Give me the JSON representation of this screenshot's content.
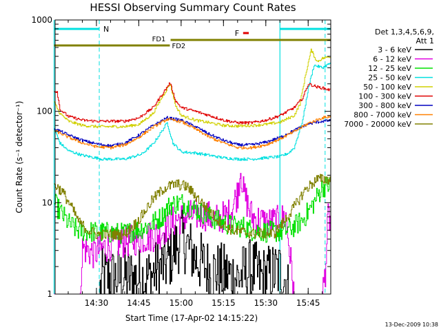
{
  "chart_data": {
    "type": "line",
    "title": "HESSI Observing Summary Count Rates",
    "xlabel": "Start Time (17-Apr-02 14:15:22)",
    "ylabel": "Count Rate (s⁻¹ detector⁻¹)",
    "y_scale": "log",
    "ylim": [
      1,
      1000
    ],
    "xlim": [
      "14:15:22",
      "15:53:00"
    ],
    "x_ticks": [
      "14:30",
      "14:45",
      "15:00",
      "15:15",
      "15:30",
      "15:45"
    ],
    "y_ticks": [
      "1",
      "10",
      "100",
      "1000"
    ],
    "grid": false,
    "legend_position": "right",
    "legend_header": [
      "Det 1,3,4,5,6,9,",
      "Att 1"
    ],
    "timestamp": "13-Dec-2009 10:38",
    "series": [
      {
        "name": "3 - 6 keV",
        "color": "#000000",
        "points": [
          [
            "14:15",
            1
          ],
          [
            "14:31",
            1
          ],
          [
            "14:32",
            1.5
          ],
          [
            "14:48",
            1.5
          ],
          [
            "14:55",
            2.2
          ],
          [
            "15:00",
            4.2
          ],
          [
            "15:05",
            2.5
          ],
          [
            "15:10",
            1.8
          ],
          [
            "15:20",
            1.5
          ],
          [
            "15:25",
            1.9
          ],
          [
            "15:28",
            1.5
          ],
          [
            "15:35",
            1.8
          ],
          [
            "15:37",
            1.4
          ],
          [
            "15:38",
            1
          ],
          [
            "15:53",
            1
          ]
        ]
      },
      {
        "name": "6 - 12 keV",
        "color": "#e000e0",
        "points": [
          [
            "14:15",
            1
          ],
          [
            "14:24",
            1
          ],
          [
            "14:25",
            3.2
          ],
          [
            "14:29",
            2.8
          ],
          [
            "14:35",
            3.5
          ],
          [
            "14:45",
            4
          ],
          [
            "14:52",
            4.5
          ],
          [
            "14:58",
            6.5
          ],
          [
            "15:03",
            7.2
          ],
          [
            "15:08",
            7.5
          ],
          [
            "15:12",
            6.5
          ],
          [
            "15:17",
            7.5
          ],
          [
            "15:20",
            13
          ],
          [
            "15:21",
            24
          ],
          [
            "15:22",
            13
          ],
          [
            "15:25",
            7
          ],
          [
            "15:30",
            6
          ],
          [
            "15:34",
            6.2
          ],
          [
            "15:37",
            7
          ],
          [
            "15:40",
            1
          ],
          [
            "15:50",
            1
          ],
          [
            "15:51",
            1.8
          ],
          [
            "15:52",
            7
          ],
          [
            "15:53",
            6
          ]
        ]
      },
      {
        "name": "12 - 25 keV",
        "color": "#00e000",
        "points": [
          [
            "14:15",
            10
          ],
          [
            "14:17",
            8
          ],
          [
            "14:20",
            6
          ],
          [
            "14:23",
            5
          ],
          [
            "14:28",
            4.8
          ],
          [
            "14:40",
            4.6
          ],
          [
            "14:48",
            5.5
          ],
          [
            "14:53",
            7
          ],
          [
            "14:56",
            9.5
          ],
          [
            "15:00",
            10
          ],
          [
            "15:05",
            8.5
          ],
          [
            "15:10",
            7
          ],
          [
            "15:15",
            6
          ],
          [
            "15:19",
            5.5
          ],
          [
            "15:22",
            5.5
          ],
          [
            "15:25",
            5
          ],
          [
            "15:30",
            4.8
          ],
          [
            "15:36",
            4.8
          ],
          [
            "15:40",
            5.5
          ],
          [
            "15:43",
            6.5
          ],
          [
            "15:47",
            10
          ],
          [
            "15:50",
            15
          ],
          [
            "15:53",
            15.5
          ]
        ]
      },
      {
        "name": "25 - 50 keV",
        "color": "#00e0e0",
        "points": [
          [
            "14:15",
            65
          ],
          [
            "14:17",
            45
          ],
          [
            "14:20",
            37
          ],
          [
            "14:25",
            33
          ],
          [
            "14:32",
            30
          ],
          [
            "14:40",
            30
          ],
          [
            "14:46",
            34
          ],
          [
            "14:50",
            44
          ],
          [
            "14:53",
            60
          ],
          [
            "14:55",
            75
          ],
          [
            "14:57",
            45
          ],
          [
            "15:00",
            36
          ],
          [
            "15:05",
            35
          ],
          [
            "15:10",
            33
          ],
          [
            "15:15",
            31
          ],
          [
            "15:20",
            30
          ],
          [
            "15:25",
            30
          ],
          [
            "15:30",
            31
          ],
          [
            "15:35",
            32
          ],
          [
            "15:38",
            35
          ],
          [
            "15:40",
            40
          ],
          [
            "15:43",
            80
          ],
          [
            "15:45",
            180
          ],
          [
            "15:47",
            320
          ],
          [
            "15:50",
            300
          ],
          [
            "15:53",
            340
          ]
        ]
      },
      {
        "name": "50 - 100 keV",
        "color": "#d0d000",
        "points": [
          [
            "14:15",
            125
          ],
          [
            "14:17",
            95
          ],
          [
            "14:20",
            78
          ],
          [
            "14:25",
            70
          ],
          [
            "14:30",
            68
          ],
          [
            "14:40",
            68
          ],
          [
            "14:45",
            72
          ],
          [
            "14:50",
            95
          ],
          [
            "14:53",
            140
          ],
          [
            "14:56",
            200
          ],
          [
            "14:58",
            115
          ],
          [
            "15:00",
            90
          ],
          [
            "15:05",
            80
          ],
          [
            "15:10",
            75
          ],
          [
            "15:15",
            70
          ],
          [
            "15:20",
            69
          ],
          [
            "15:25",
            70
          ],
          [
            "15:30",
            72
          ],
          [
            "15:35",
            76
          ],
          [
            "15:40",
            90
          ],
          [
            "15:42",
            120
          ],
          [
            "15:44",
            250
          ],
          [
            "15:46",
            470
          ],
          [
            "15:48",
            350
          ],
          [
            "15:50",
            380
          ],
          [
            "15:53",
            400
          ]
        ]
      },
      {
        "name": "100 - 300 keV",
        "color": "#e00000",
        "points": [
          [
            "14:15",
            165
          ],
          [
            "14:16",
            165
          ],
          [
            "14:17",
            105
          ],
          [
            "14:20",
            88
          ],
          [
            "14:25",
            80
          ],
          [
            "14:30",
            78
          ],
          [
            "14:40",
            78
          ],
          [
            "14:45",
            85
          ],
          [
            "14:50",
            110
          ],
          [
            "14:53",
            150
          ],
          [
            "14:56",
            205
          ],
          [
            "14:58",
            130
          ],
          [
            "15:00",
            110
          ],
          [
            "15:05",
            100
          ],
          [
            "15:10",
            90
          ],
          [
            "15:15",
            80
          ],
          [
            "15:20",
            75
          ],
          [
            "15:25",
            75
          ],
          [
            "15:30",
            80
          ],
          [
            "15:35",
            90
          ],
          [
            "15:40",
            110
          ],
          [
            "15:43",
            140
          ],
          [
            "15:45",
            200
          ],
          [
            "15:48",
            185
          ],
          [
            "15:50",
            180
          ],
          [
            "15:53",
            170
          ]
        ]
      },
      {
        "name": "300 - 800 keV",
        "color": "#0000c0",
        "points": [
          [
            "14:15",
            65
          ],
          [
            "14:20",
            55
          ],
          [
            "14:25",
            48
          ],
          [
            "14:30",
            44
          ],
          [
            "14:35",
            42
          ],
          [
            "14:40",
            45
          ],
          [
            "14:45",
            55
          ],
          [
            "14:50",
            70
          ],
          [
            "14:55",
            85
          ],
          [
            "15:00",
            80
          ],
          [
            "15:05",
            68
          ],
          [
            "15:10",
            56
          ],
          [
            "15:15",
            48
          ],
          [
            "15:20",
            43
          ],
          [
            "15:25",
            43
          ],
          [
            "15:30",
            46
          ],
          [
            "15:35",
            52
          ],
          [
            "15:40",
            62
          ],
          [
            "15:45",
            73
          ],
          [
            "15:50",
            78
          ],
          [
            "15:53",
            79
          ]
        ]
      },
      {
        "name": "800 - 7000 keV",
        "color": "#ff8000",
        "points": [
          [
            "14:15",
            62
          ],
          [
            "14:20",
            52
          ],
          [
            "14:25",
            45
          ],
          [
            "14:30",
            41
          ],
          [
            "14:35",
            40
          ],
          [
            "14:40",
            43
          ],
          [
            "14:45",
            52
          ],
          [
            "14:50",
            67
          ],
          [
            "14:55",
            82
          ],
          [
            "15:00",
            77
          ],
          [
            "15:05",
            64
          ],
          [
            "15:10",
            52
          ],
          [
            "15:15",
            45
          ],
          [
            "15:20",
            40
          ],
          [
            "15:25",
            40
          ],
          [
            "15:30",
            43
          ],
          [
            "15:35",
            50
          ],
          [
            "15:40",
            60
          ],
          [
            "15:45",
            74
          ],
          [
            "15:50",
            85
          ],
          [
            "15:53",
            88
          ]
        ]
      },
      {
        "name": "7000 - 20000 keV",
        "color": "#808000",
        "points": [
          [
            "14:15",
            16
          ],
          [
            "14:18",
            13
          ],
          [
            "14:21",
            9
          ],
          [
            "14:24",
            6
          ],
          [
            "14:27",
            5
          ],
          [
            "14:30",
            4.5
          ],
          [
            "14:40",
            4.5
          ],
          [
            "14:45",
            6.5
          ],
          [
            "14:50",
            11
          ],
          [
            "14:54",
            14.5
          ],
          [
            "14:58",
            16
          ],
          [
            "15:02",
            15
          ],
          [
            "15:06",
            11
          ],
          [
            "15:10",
            8
          ],
          [
            "15:14",
            6
          ],
          [
            "15:18",
            5
          ],
          [
            "15:25",
            4.6
          ],
          [
            "15:33",
            4.6
          ],
          [
            "15:36",
            6
          ],
          [
            "15:40",
            9
          ],
          [
            "15:44",
            14
          ],
          [
            "15:48",
            18
          ],
          [
            "15:53",
            18
          ]
        ]
      }
    ],
    "annotations": {
      "N": {
        "label": "N",
        "color": "#00e0e0",
        "segments": [
          [
            "14:15",
            "14:31"
          ],
          [
            "15:35",
            "15:53"
          ]
        ]
      },
      "F": {
        "label": "F",
        "color": "#e00000",
        "segments": [
          [
            "15:20",
            "15:22"
          ]
        ]
      },
      "FD1": {
        "label": "FD1",
        "color": "#808000",
        "segments": [
          [
            "14:57",
            "15:53"
          ]
        ]
      },
      "FD2": {
        "label": "FD2",
        "color": "#808000",
        "segments": [
          [
            "14:15",
            "14:56"
          ]
        ]
      },
      "night_boundaries": {
        "color": "#00e0e0",
        "times": [
          "14:31",
          "15:51"
        ],
        "solid_times": [
          "14:15",
          "15:35"
        ]
      }
    }
  }
}
